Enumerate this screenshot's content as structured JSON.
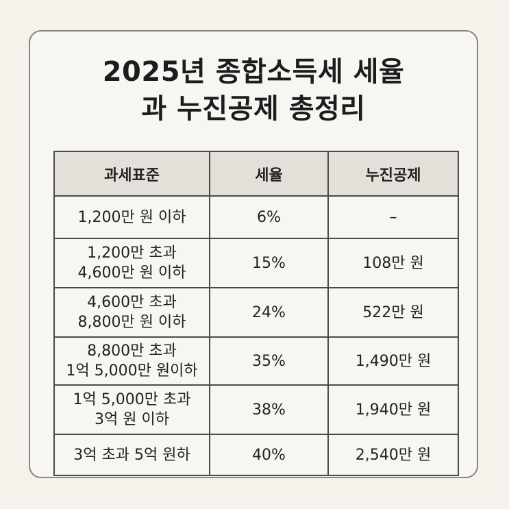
{
  "title": {
    "line1": "2025년 종합소득세 세율",
    "line2": "과 누진공제 총정리"
  },
  "table": {
    "headers": [
      "과세표준",
      "세율",
      "누진공제"
    ],
    "rows": [
      {
        "base_line1": "1,200만 원 이하",
        "base_line2": "",
        "rate": "6%",
        "deduction": "–"
      },
      {
        "base_line1": "1,200만 초과",
        "base_line2": "4,600만 원 이하",
        "rate": "15%",
        "deduction": "108만 원"
      },
      {
        "base_line1": "4,600만 초과",
        "base_line2": "8,800만 원 이하",
        "rate": "24%",
        "deduction": "522만 원"
      },
      {
        "base_line1": "8,800만 초과",
        "base_line2": "1억 5,000만 원이하",
        "rate": "35%",
        "deduction": "1,490만 원"
      },
      {
        "base_line1": "1억 5,000만 초과",
        "base_line2": "3억 원 이하",
        "rate": "38%",
        "deduction": "1,940만 원"
      },
      {
        "base_line1": "3억 초과 5억 원하",
        "base_line2": "",
        "rate": "40%",
        "deduction": "2,540만 원"
      }
    ]
  }
}
